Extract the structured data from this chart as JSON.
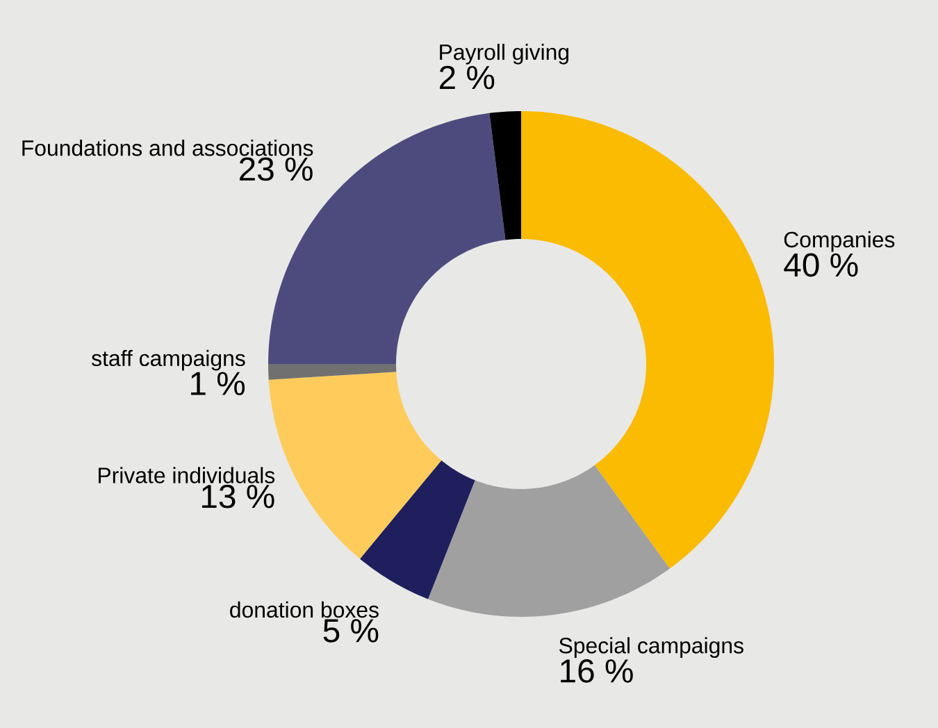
{
  "chart_data": {
    "type": "donut",
    "categories": [
      "Companies",
      "Special campaigns",
      "donation boxes",
      "Private individuals",
      "staff campaigns",
      "Foundations and associations",
      "Payroll giving"
    ],
    "values": [
      40,
      16,
      5,
      13,
      1,
      23,
      2
    ],
    "colors": [
      "#fbbb00",
      "#a0a0a0",
      "#1e1f5c",
      "#ffcc5c",
      "#707070",
      "#4d4b7e",
      "#000000"
    ],
    "value_labels": [
      "40 %",
      "16 %",
      "5 %",
      "13 %",
      "1 %",
      "23 %",
      "2 %"
    ]
  }
}
